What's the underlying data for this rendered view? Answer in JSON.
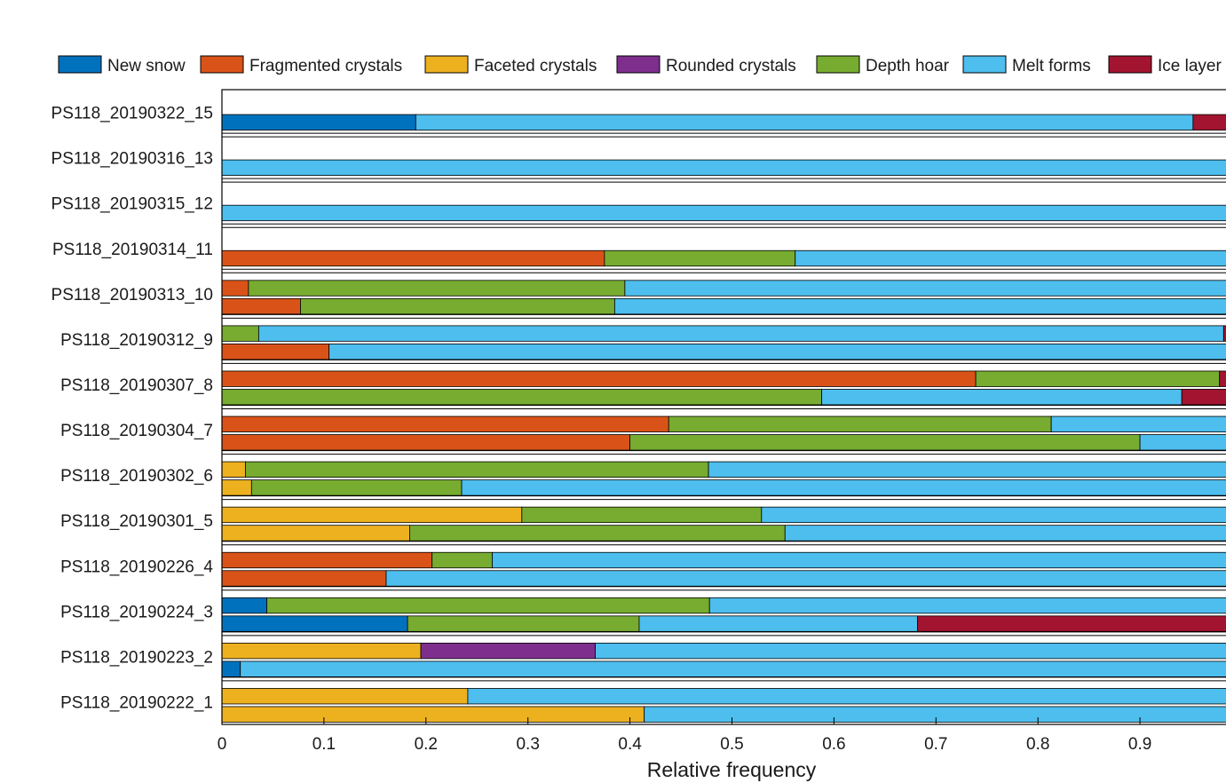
{
  "chart_data": {
    "type": "bar",
    "orientation": "horizontal-stacked",
    "xlabel": "Relative frequency",
    "xlim": [
      0,
      0.985
    ],
    "xticks": [
      "0",
      "0.1",
      "0.2",
      "0.3",
      "0.4",
      "0.5",
      "0.6",
      "0.7",
      "0.8",
      "0.9"
    ],
    "legend_position": "top",
    "legend": [
      {
        "name": "New snow",
        "color": "#0072BD"
      },
      {
        "name": "Fragmented crystals",
        "color": "#D95319"
      },
      {
        "name": "Faceted crystals",
        "color": "#EDB120"
      },
      {
        "name": "Rounded crystals",
        "color": "#7E2F8E"
      },
      {
        "name": "Depth hoar",
        "color": "#77AC30"
      },
      {
        "name": "Melt forms",
        "color": "#4DBEEE"
      },
      {
        "name": "Ice layer",
        "color": "#A2142F"
      }
    ],
    "categories": [
      "PS118_20190322_15",
      "PS118_20190316_13",
      "PS118_20190315_12",
      "PS118_20190314_11",
      "PS118_20190313_10",
      "PS118_20190312_9",
      "PS118_20190307_8",
      "PS118_20190304_7",
      "PS118_20190302_6",
      "PS118_20190301_5",
      "PS118_20190226_4",
      "PS118_20190224_3",
      "PS118_20190223_2",
      "PS118_20190222_1"
    ],
    "profiles": [
      {
        "name": "PS118_20190322_15",
        "bars": [
          [
            [
              "New snow",
              0.19
            ],
            [
              "Melt forms",
              0.762
            ],
            [
              "Ice layer",
              0.048
            ]
          ]
        ]
      },
      {
        "name": "PS118_20190316_13",
        "bars": [
          [
            [
              "Melt forms",
              1.0
            ]
          ]
        ]
      },
      {
        "name": "PS118_20190315_12",
        "bars": [
          [
            [
              "Melt forms",
              1.0
            ]
          ]
        ]
      },
      {
        "name": "PS118_20190314_11",
        "bars": [
          [
            [
              "Fragmented crystals",
              0.375
            ],
            [
              "Depth hoar",
              0.187
            ],
            [
              "Melt forms",
              0.438
            ]
          ]
        ]
      },
      {
        "name": "PS118_20190313_10",
        "bars": [
          [
            [
              "Fragmented crystals",
              0.026
            ],
            [
              "Depth hoar",
              0.369
            ],
            [
              "Melt forms",
              0.605
            ]
          ],
          [
            [
              "Fragmented crystals",
              0.077
            ],
            [
              "Depth hoar",
              0.308
            ],
            [
              "Melt forms",
              0.615
            ]
          ]
        ]
      },
      {
        "name": "PS118_20190312_9",
        "bars": [
          [
            [
              "Depth hoar",
              0.036
            ],
            [
              "Melt forms",
              0.946
            ],
            [
              "Ice layer",
              0.018
            ]
          ],
          [
            [
              "Fragmented crystals",
              0.105
            ],
            [
              "Melt forms",
              0.895
            ]
          ]
        ]
      },
      {
        "name": "PS118_20190307_8",
        "bars": [
          [
            [
              "Fragmented crystals",
              0.739
            ],
            [
              "Depth hoar",
              0.239
            ],
            [
              "Ice layer",
              0.022
            ]
          ],
          [
            [
              "Depth hoar",
              0.588
            ],
            [
              "Melt forms",
              0.353
            ],
            [
              "Ice layer",
              0.059
            ]
          ]
        ]
      },
      {
        "name": "PS118_20190304_7",
        "bars": [
          [
            [
              "Fragmented crystals",
              0.438
            ],
            [
              "Depth hoar",
              0.375
            ],
            [
              "Melt forms",
              0.187
            ]
          ],
          [
            [
              "Fragmented crystals",
              0.4
            ],
            [
              "Depth hoar",
              0.5
            ],
            [
              "Melt forms",
              0.1
            ]
          ]
        ]
      },
      {
        "name": "PS118_20190302_6",
        "bars": [
          [
            [
              "Faceted crystals",
              0.023
            ],
            [
              "Depth hoar",
              0.454
            ],
            [
              "Melt forms",
              0.523
            ]
          ],
          [
            [
              "Faceted crystals",
              0.029
            ],
            [
              "Depth hoar",
              0.206
            ],
            [
              "Melt forms",
              0.765
            ]
          ]
        ]
      },
      {
        "name": "PS118_20190301_5",
        "bars": [
          [
            [
              "Faceted crystals",
              0.294
            ],
            [
              "Depth hoar",
              0.235
            ],
            [
              "Melt forms",
              0.471
            ]
          ],
          [
            [
              "Faceted crystals",
              0.184
            ],
            [
              "Depth hoar",
              0.368
            ],
            [
              "Melt forms",
              0.448
            ]
          ]
        ]
      },
      {
        "name": "PS118_20190226_4",
        "bars": [
          [
            [
              "Fragmented crystals",
              0.206
            ],
            [
              "Depth hoar",
              0.059
            ],
            [
              "Melt forms",
              0.735
            ]
          ],
          [
            [
              "Fragmented crystals",
              0.161
            ],
            [
              "Melt forms",
              0.839
            ]
          ]
        ]
      },
      {
        "name": "PS118_20190224_3",
        "bars": [
          [
            [
              "New snow",
              0.044
            ],
            [
              "Depth hoar",
              0.434
            ],
            [
              "Melt forms",
              0.522
            ]
          ],
          [
            [
              "New snow",
              0.182
            ],
            [
              "Depth hoar",
              0.227
            ],
            [
              "Melt forms",
              0.273
            ],
            [
              "Ice layer",
              0.318
            ]
          ]
        ]
      },
      {
        "name": "PS118_20190223_2",
        "bars": [
          [
            [
              "Faceted crystals",
              0.195
            ],
            [
              "Rounded crystals",
              0.171
            ],
            [
              "Melt forms",
              0.634
            ]
          ],
          [
            [
              "New snow",
              0.018
            ],
            [
              "Melt forms",
              0.982
            ]
          ]
        ]
      },
      {
        "name": "PS118_20190222_1",
        "bars": [
          [
            [
              "Faceted crystals",
              0.241
            ],
            [
              "Melt forms",
              0.759
            ]
          ],
          [
            [
              "Faceted crystals",
              0.414
            ],
            [
              "Melt forms",
              0.586
            ]
          ]
        ]
      }
    ]
  }
}
